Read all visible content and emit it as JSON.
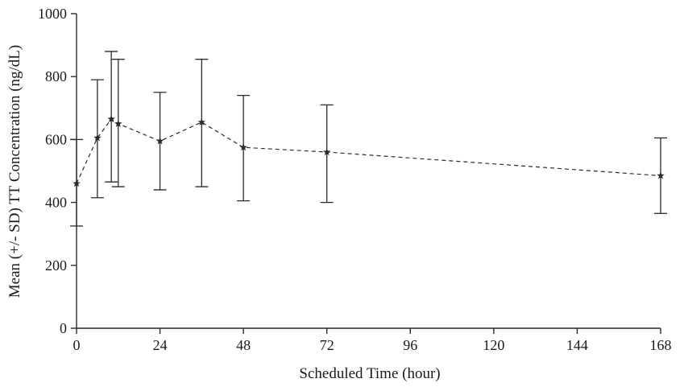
{
  "chart_data": {
    "type": "line",
    "title": "",
    "xlabel": "Scheduled Time (hour)",
    "ylabel": "Mean (+/- SD) TT Concentration (ng/dL)",
    "xlim": [
      0,
      168
    ],
    "ylim": [
      0,
      1000
    ],
    "x_ticks": [
      0,
      24,
      48,
      72,
      96,
      120,
      144,
      168
    ],
    "y_ticks": [
      0,
      200,
      400,
      600,
      800,
      1000
    ],
    "grid": false,
    "legend": "none",
    "line_style": "dashed",
    "marker": "star",
    "color": "#2b2b2b",
    "series": [
      {
        "name": "mean-tt-concentration",
        "x": [
          0,
          6,
          10,
          12,
          24,
          36,
          48,
          72,
          168
        ],
        "y": [
          460,
          605,
          665,
          650,
          595,
          655,
          575,
          560,
          485
        ],
        "upper": [
          600,
          790,
          880,
          855,
          750,
          855,
          740,
          710,
          605
        ],
        "lower": [
          325,
          415,
          465,
          450,
          440,
          450,
          405,
          400,
          365
        ]
      }
    ]
  }
}
